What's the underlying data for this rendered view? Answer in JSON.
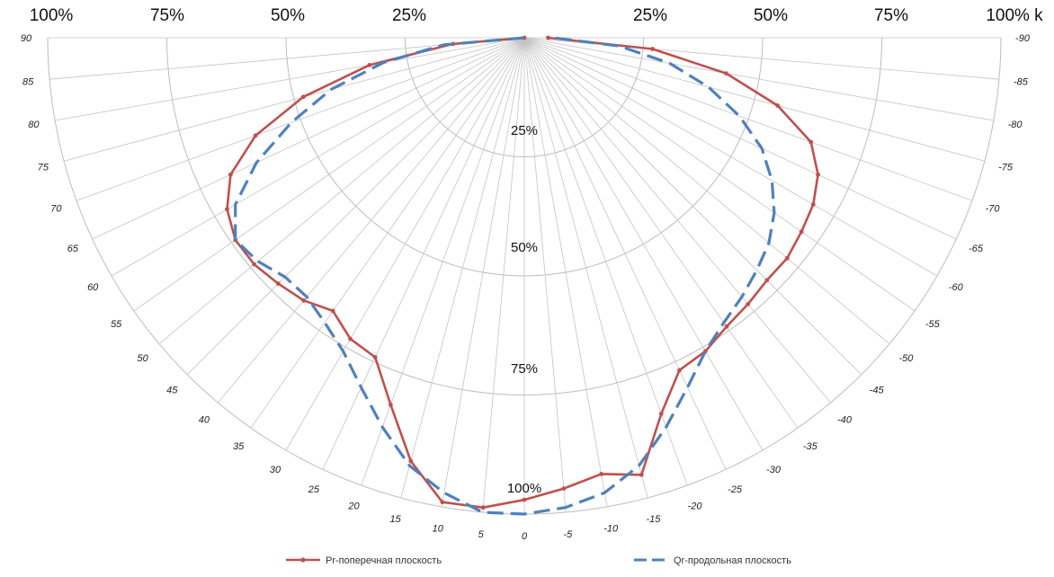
{
  "chart_data": {
    "type": "polar",
    "angle_labels": [
      "90",
      "85",
      "80",
      "75",
      "70",
      "65",
      "60",
      "55",
      "50",
      "45",
      "40",
      "35",
      "30",
      "25",
      "20",
      "15",
      "10",
      "5",
      "0",
      "-5",
      "-10",
      "-15",
      "-20",
      "-25",
      "-30",
      "-35",
      "-40",
      "-45",
      "-50",
      "-55",
      "-60",
      "-65",
      "-70",
      "-75",
      "-80",
      "-85",
      "-90"
    ],
    "angles": [
      90,
      85,
      80,
      75,
      70,
      65,
      60,
      55,
      50,
      45,
      40,
      35,
      30,
      25,
      20,
      15,
      10,
      5,
      0,
      -5,
      -10,
      -15,
      -20,
      -25,
      -30,
      -35,
      -40,
      -45,
      -50,
      -55,
      -60,
      -65,
      -70,
      -75,
      -80,
      -85,
      -90
    ],
    "top_labels": [
      "100%",
      "75%",
      "50%",
      "25%",
      "25%",
      "50%",
      "75%",
      "100% k"
    ],
    "ring_labels": [
      "25%",
      "50%",
      "75%",
      "100%"
    ],
    "radial_range": [
      0,
      1
    ],
    "grid": true,
    "legend_position": "bottom",
    "series": [
      {
        "name": "Pr-поперечная плоскость",
        "color": "#c0504d",
        "style": "solid-markers",
        "values": [
          0.0,
          0.15,
          0.33,
          0.48,
          0.6,
          0.68,
          0.72,
          0.74,
          0.74,
          0.73,
          0.72,
          0.7,
          0.73,
          0.74,
          0.82,
          0.92,
          0.99,
          0.99,
          0.97,
          0.95,
          0.93,
          0.95,
          0.84,
          0.77,
          0.76,
          0.74,
          0.73,
          0.72,
          0.72,
          0.71,
          0.7,
          0.68,
          0.64,
          0.55,
          0.43,
          0.27,
          0.05
        ]
      },
      {
        "name": "Qr-продольная плоскость",
        "color": "#4f81bd",
        "style": "dashed",
        "values": [
          0.0,
          0.17,
          0.3,
          0.42,
          0.52,
          0.62,
          0.7,
          0.74,
          0.73,
          0.71,
          0.71,
          0.73,
          0.76,
          0.81,
          0.87,
          0.93,
          0.97,
          1.0,
          1.0,
          0.99,
          0.97,
          0.93,
          0.87,
          0.81,
          0.76,
          0.73,
          0.71,
          0.69,
          0.67,
          0.64,
          0.6,
          0.55,
          0.48,
          0.4,
          0.31,
          0.2,
          0.06
        ]
      }
    ]
  }
}
